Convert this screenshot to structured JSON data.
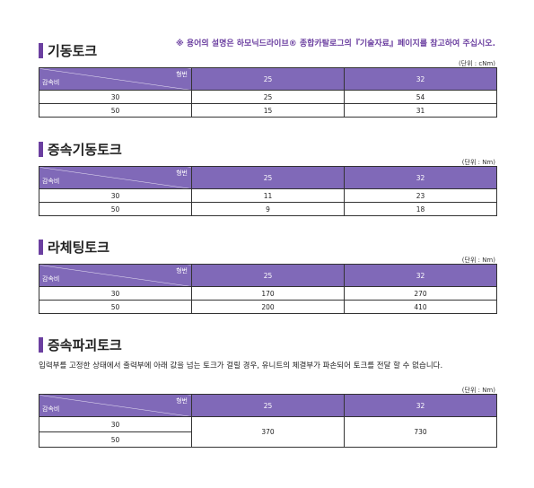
{
  "note": "※ 용어의 설명은 하모닉드라이브® 종합카탈로그의『기술자료』페이지를 참고하여 주십시오.",
  "sections": [
    {
      "title": "기동토크",
      "unit": "(단위 : cNm)",
      "header": {
        "corner_top": "형번",
        "corner_bottom": "감속비",
        "col1": "25",
        "col2": "32"
      },
      "rows": [
        {
          "ratio": "30",
          "v1": "25",
          "v2": "54"
        },
        {
          "ratio": "50",
          "v1": "15",
          "v2": "31"
        }
      ]
    },
    {
      "title": "증속기동토크",
      "unit": "(단위 : Nm)",
      "header": {
        "corner_top": "형번",
        "corner_bottom": "감속비",
        "col1": "25",
        "col2": "32"
      },
      "rows": [
        {
          "ratio": "30",
          "v1": "11",
          "v2": "23"
        },
        {
          "ratio": "50",
          "v1": "9",
          "v2": "18"
        }
      ]
    },
    {
      "title": "라체팅토크",
      "unit": "(단위 : Nm)",
      "header": {
        "corner_top": "형번",
        "corner_bottom": "감속비",
        "col1": "25",
        "col2": "32"
      },
      "rows": [
        {
          "ratio": "30",
          "v1": "170",
          "v2": "270"
        },
        {
          "ratio": "50",
          "v1": "200",
          "v2": "410"
        }
      ]
    },
    {
      "title": "증속파괴토크",
      "description": "입력부를 고정한 상태에서 출력부에 아래 값을 넘는 토크가 걸릴 경우, 유니트의 체결부가 파손되어 토크를 전달 할 수 없습니다.",
      "unit": "(단위 : Nm)",
      "header": {
        "corner_top": "형번",
        "corner_bottom": "감속비",
        "col1": "25",
        "col2": "32"
      },
      "rows": [
        {
          "ratio": "30"
        },
        {
          "ratio": "50"
        }
      ],
      "merged": {
        "v1": "370",
        "v2": "730"
      }
    }
  ]
}
